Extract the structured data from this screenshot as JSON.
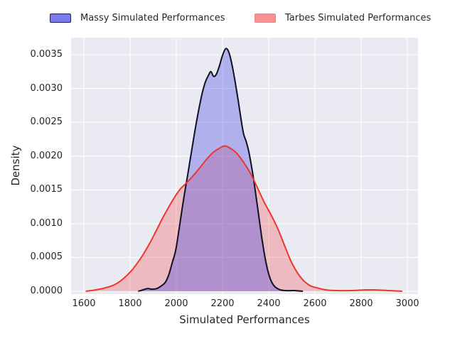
{
  "chart_data": {
    "type": "area",
    "subtype": "kde-density",
    "title": "",
    "xlabel": "Simulated Performances",
    "ylabel": "Density",
    "xlim": [
      1545,
      3046
    ],
    "ylim": [
      -2e-05,
      0.00375
    ],
    "grid": true,
    "grid_color": "#ffffff",
    "background_color": "#eaeaf2",
    "legend_position": "top-outside",
    "x_ticks": [
      1600,
      1800,
      2000,
      2200,
      2400,
      2600,
      2800,
      3000
    ],
    "x_tick_labels": [
      "1600",
      "1800",
      "2000",
      "2200",
      "2400",
      "2600",
      "2800",
      "3000"
    ],
    "y_ticks": [
      0.0,
      0.0005,
      0.001,
      0.0015,
      0.002,
      0.0025,
      0.003,
      0.0035
    ],
    "y_tick_labels": [
      "0.0000",
      "0.0005",
      "0.0010",
      "0.0015",
      "0.0020",
      "0.0025",
      "0.0030",
      "0.0035"
    ],
    "series": [
      {
        "name": "Massy Simulated Performances",
        "line_color": "#101024",
        "fill_color": "rgba(70,70,230,0.35)",
        "legend_swatch": {
          "fill": "#7b7be9",
          "border": "#23234b"
        },
        "peak": {
          "x": 2215,
          "density": 0.00359
        },
        "points": [
          [
            1835,
            0
          ],
          [
            1855,
            2e-05
          ],
          [
            1875,
            4e-05
          ],
          [
            1895,
            3e-05
          ],
          [
            1915,
            4e-05
          ],
          [
            1935,
            8e-05
          ],
          [
            1952,
            0.00013
          ],
          [
            1968,
            0.00025
          ],
          [
            1982,
            0.00042
          ],
          [
            1997,
            0.0006
          ],
          [
            2012,
            0.00092
          ],
          [
            2030,
            0.00133
          ],
          [
            2050,
            0.00174
          ],
          [
            2070,
            0.00216
          ],
          [
            2090,
            0.00256
          ],
          [
            2108,
            0.00287
          ],
          [
            2124,
            0.00308
          ],
          [
            2140,
            0.0032
          ],
          [
            2150,
            0.00325
          ],
          [
            2161,
            0.00318
          ],
          [
            2173,
            0.00321
          ],
          [
            2186,
            0.00333
          ],
          [
            2200,
            0.00349
          ],
          [
            2214,
            0.00359
          ],
          [
            2227,
            0.00354
          ],
          [
            2240,
            0.00337
          ],
          [
            2254,
            0.00311
          ],
          [
            2267,
            0.00284
          ],
          [
            2279,
            0.00257
          ],
          [
            2291,
            0.00233
          ],
          [
            2302,
            0.00222
          ],
          [
            2314,
            0.00206
          ],
          [
            2329,
            0.00178
          ],
          [
            2344,
            0.00143
          ],
          [
            2359,
            0.00106
          ],
          [
            2374,
            0.0007
          ],
          [
            2389,
            0.00041
          ],
          [
            2404,
            0.00021
          ],
          [
            2421,
            9e-05
          ],
          [
            2443,
            3e-05
          ],
          [
            2470,
            1e-05
          ],
          [
            2510,
            1e-05
          ],
          [
            2548,
            0
          ]
        ]
      },
      {
        "name": "Tarbes Simulated Performances",
        "line_color": "#ee352d",
        "fill_color": "rgba(244,60,60,0.27)",
        "legend_swatch": {
          "fill": "#fa9191",
          "border": "#f87e7e"
        },
        "peak": {
          "x": 2210,
          "density": 0.00215
        },
        "points": [
          [
            1608,
            0
          ],
          [
            1650,
            2e-05
          ],
          [
            1692,
            5e-05
          ],
          [
            1734,
            0.0001
          ],
          [
            1772,
            0.00019
          ],
          [
            1812,
            0.00033
          ],
          [
            1850,
            0.00051
          ],
          [
            1885,
            0.00071
          ],
          [
            1915,
            0.00091
          ],
          [
            1945,
            0.00111
          ],
          [
            1973,
            0.00128
          ],
          [
            1998,
            0.00142
          ],
          [
            2019,
            0.00152
          ],
          [
            2040,
            0.00159
          ],
          [
            2068,
            0.00169
          ],
          [
            2098,
            0.00181
          ],
          [
            2128,
            0.00194
          ],
          [
            2158,
            0.00205
          ],
          [
            2184,
            0.00211
          ],
          [
            2210,
            0.00215
          ],
          [
            2236,
            0.00211
          ],
          [
            2262,
            0.00204
          ],
          [
            2291,
            0.00191
          ],
          [
            2320,
            0.00175
          ],
          [
            2350,
            0.00154
          ],
          [
            2380,
            0.00132
          ],
          [
            2410,
            0.00113
          ],
          [
            2440,
            0.00092
          ],
          [
            2468,
            0.00068
          ],
          [
            2497,
            0.00044
          ],
          [
            2525,
            0.00027
          ],
          [
            2553,
            0.00015
          ],
          [
            2581,
            8e-05
          ],
          [
            2610,
            5e-05
          ],
          [
            2650,
            2e-05
          ],
          [
            2695,
            1e-05
          ],
          [
            2755,
            1e-05
          ],
          [
            2815,
            2e-05
          ],
          [
            2865,
            2e-05
          ],
          [
            2920,
            1e-05
          ],
          [
            2978,
            0
          ]
        ]
      }
    ]
  }
}
